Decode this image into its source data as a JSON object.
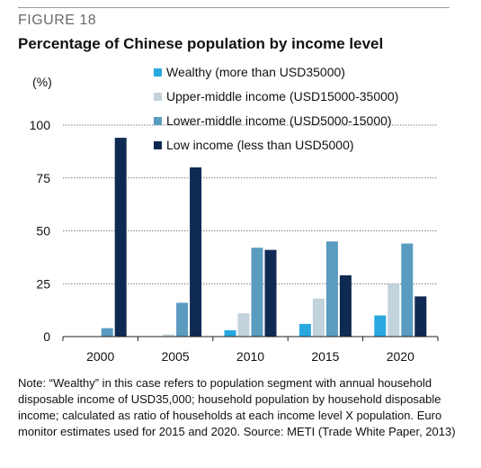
{
  "header": {
    "figure_label": "FIGURE 18",
    "title": "Percentage of Chinese population by income level"
  },
  "note": "Note: “Wealthy” in this case refers to population segment with annual household disposable income of USD35,000; household population by household disposable income; calculated as ratio of households at each income level X population. Euro monitor estimates used for 2015 and 2020. Source: METI (Trade White Paper, 2013)",
  "chart_data": {
    "type": "bar",
    "title": "Percentage of Chinese population by income level",
    "ylabel": "(%)",
    "xlabel": "",
    "categories": [
      "2000",
      "2005",
      "2010",
      "2015",
      "2020"
    ],
    "ylim": [
      0,
      100
    ],
    "yticks": [
      0,
      25,
      50,
      75,
      100
    ],
    "grid": true,
    "legend_position": "top-right",
    "series": [
      {
        "name": "Wealthy (more than USD35000)",
        "color": "#29a8e0",
        "values": [
          0,
          0,
          3,
          6,
          10
        ]
      },
      {
        "name": "Upper-middle income (USD15000-35000)",
        "color": "#c3d3dc",
        "values": [
          0,
          1,
          11,
          18,
          25
        ]
      },
      {
        "name": "Lower-middle income (USD5000-15000)",
        "color": "#5a9bc0",
        "values": [
          4,
          16,
          42,
          45,
          44
        ]
      },
      {
        "name": "Low income (less than USD5000)",
        "color": "#0e2a52",
        "values": [
          94,
          80,
          41,
          29,
          19
        ]
      }
    ]
  }
}
